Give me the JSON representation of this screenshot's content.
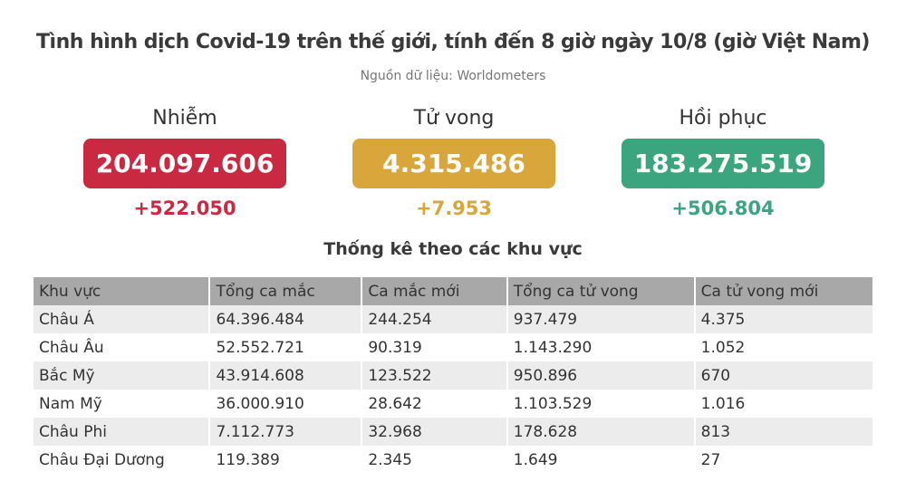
{
  "header": {
    "title": "Tình hình dịch Covid-19 trên thế giới, tính đến 8 giờ ngày 10/8 (giờ Việt Nam)",
    "source": "Nguồn dữ liệu: Worldometers"
  },
  "stats": [
    {
      "label": "Nhiễm",
      "value": "204.097.606",
      "change": "+522.050",
      "color": "#c92a42"
    },
    {
      "label": "Tử vong",
      "value": "4.315.486",
      "change": "+7.953",
      "color": "#d9a63b"
    },
    {
      "label": "Hồi phục",
      "value": "183.275.519",
      "change": "+506.804",
      "color": "#3ba57f"
    }
  ],
  "table": {
    "title": "Thống kê theo các khu vực",
    "columns": [
      "Khu vực",
      "Tổng ca mắc",
      "Ca mắc mới",
      "Tổng ca tử vong",
      "Ca tử vong mới"
    ],
    "rows": [
      [
        "Châu Á",
        "64.396.484",
        "244.254",
        "937.479",
        "4.375"
      ],
      [
        "Châu Âu",
        "52.552.721",
        "90.319",
        "1.143.290",
        "1.052"
      ],
      [
        "Bắc Mỹ",
        "43.914.608",
        "123.522",
        "950.896",
        "670"
      ],
      [
        "Nam Mỹ",
        "36.000.910",
        "28.642",
        "1.103.529",
        "1.016"
      ],
      [
        "Châu Phi",
        "7.112.773",
        "32.968",
        "178.628",
        "813"
      ],
      [
        "Châu Đại Dương",
        "119.389",
        "2.345",
        "1.649",
        "27"
      ]
    ]
  }
}
